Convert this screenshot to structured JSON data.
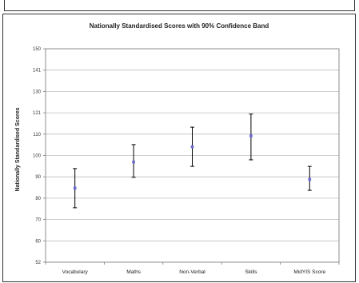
{
  "chart_data": {
    "type": "scatter",
    "title": "Nationally Standardised Scores with 90% Confidence Band",
    "xlabel": "",
    "ylabel": "Nationally Standardised Scores",
    "ylim": [
      52,
      150
    ],
    "yticks": [
      "150",
      "141",
      "130",
      "121",
      "110",
      "100",
      "90",
      "80",
      "70",
      "60",
      "52"
    ],
    "categories": [
      "Vocabulary",
      "Maths",
      "Non-Verbal",
      "Skills",
      "MidYIS Score"
    ],
    "series": [
      {
        "scores": [
          86,
          98,
          105,
          110,
          90
        ],
        "lower": [
          77,
          91,
          96,
          99,
          85
        ],
        "upper": [
          95,
          106,
          114,
          120,
          96
        ]
      }
    ],
    "grid": true,
    "legend": "none",
    "colors": {
      "error_bar": "#000000",
      "point": "#6b6bd6",
      "grid": "#bfbfbf",
      "axis": "#808080"
    }
  }
}
